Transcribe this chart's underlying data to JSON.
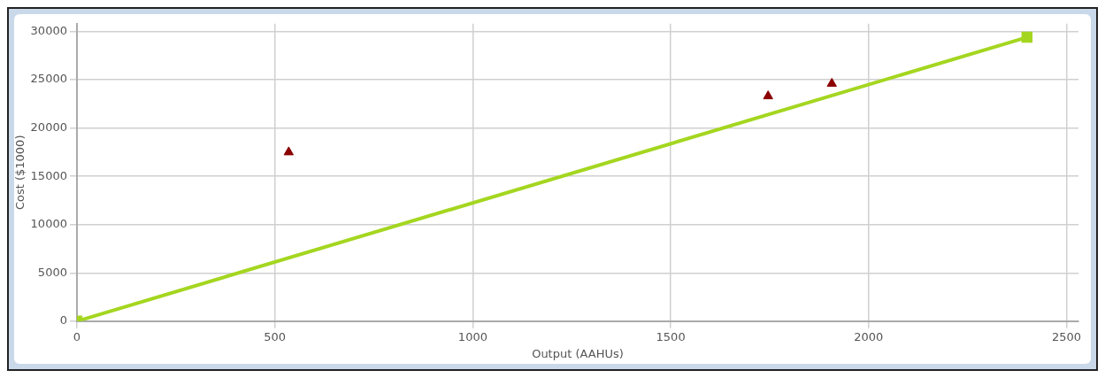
{
  "chart_data": {
    "type": "scatter",
    "xlabel": "Output (AAHUs)",
    "ylabel": "Cost ($1000)",
    "xlim": [
      0,
      2530
    ],
    "xticks": [
      0,
      500,
      1000,
      1500,
      2000,
      2500
    ],
    "ylim": [
      0,
      30800
    ],
    "yticks": [
      0,
      5000,
      10000,
      15000,
      20000,
      25000,
      30000
    ],
    "grid": true,
    "legend": false,
    "series": [
      {
        "type": "line",
        "color": "#a4d620",
        "marker": "square",
        "line_style": "solid",
        "x": [
          0,
          2400
        ],
        "values": [
          0,
          29400
        ]
      },
      {
        "type": "scatter",
        "color": "#8b0000",
        "marker": "triangle",
        "x": [
          535,
          1746,
          1907
        ],
        "values": [
          17500,
          23300,
          24600
        ]
      }
    ]
  }
}
